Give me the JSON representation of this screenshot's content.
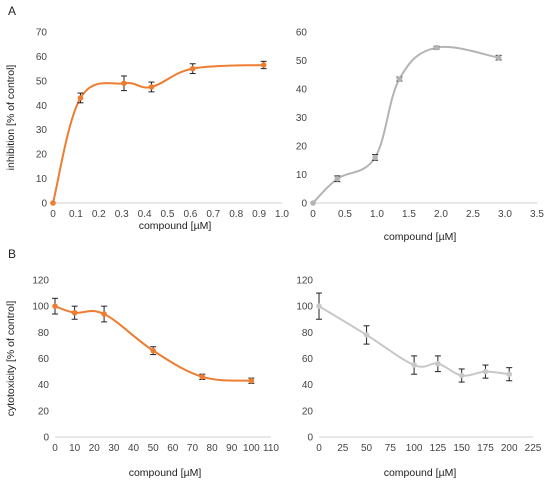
{
  "panel_labels": {
    "a": "A",
    "b": "B"
  },
  "chart_data": [
    {
      "id": "A-left",
      "type": "line",
      "xlabel": "compound [µM]",
      "ylabel": "inhibition [% of control]",
      "xlim": [
        0,
        1.0
      ],
      "xticks": [
        0,
        0.1,
        0.2,
        0.3,
        0.4,
        0.5,
        0.6,
        0.7,
        0.8,
        0.9,
        1.0
      ],
      "xtick_labels": [
        "0",
        "0.1",
        "0.2",
        "0.3",
        "0.4",
        "0.5",
        "0.6",
        "0.7",
        "0.8",
        "0.9",
        "1.0"
      ],
      "ylim": [
        0,
        70
      ],
      "yticks": [
        0,
        10,
        20,
        30,
        40,
        50,
        60,
        70
      ],
      "grid": false,
      "series": [
        {
          "color": "#ED7D31",
          "x": [
            0,
            0.12,
            0.31,
            0.43,
            0.61,
            0.92
          ],
          "y": [
            0,
            43,
            49,
            47.5,
            55,
            56.5
          ],
          "err": [
            0,
            2,
            3,
            2,
            2,
            1.5
          ]
        }
      ]
    },
    {
      "id": "A-right",
      "type": "line",
      "xlabel": "compound [µM]",
      "ylabel": "",
      "xlim": [
        0,
        3.5
      ],
      "xticks": [
        0,
        0.5,
        1.0,
        1.5,
        2.0,
        2.5,
        3.0,
        3.5
      ],
      "xtick_labels": [
        "0",
        "0.5",
        "1.0",
        "1.5",
        "2.0",
        "2.5",
        "3.0",
        "3.5"
      ],
      "ylim": [
        0,
        60
      ],
      "yticks": [
        0,
        10,
        20,
        30,
        40,
        50,
        60
      ],
      "grid": false,
      "series": [
        {
          "color": "#B4B4B4",
          "x": [
            0,
            0.38,
            0.97,
            1.35,
            1.93,
            2.9
          ],
          "y": [
            0,
            8.5,
            16,
            43.5,
            54.5,
            51
          ],
          "err": [
            0,
            1,
            1,
            0.7,
            0.5,
            0.8
          ]
        }
      ]
    },
    {
      "id": "B-left",
      "type": "line",
      "xlabel": "compound [µM]",
      "ylabel": "cytotoxicity [% of control]",
      "xlim": [
        0,
        110
      ],
      "xticks": [
        0,
        10,
        20,
        30,
        40,
        50,
        60,
        70,
        80,
        90,
        100,
        110
      ],
      "xtick_labels": [
        "0",
        "10",
        "20",
        "30",
        "40",
        "50",
        "60",
        "70",
        "80",
        "90",
        "100",
        "110"
      ],
      "ylim": [
        0,
        120
      ],
      "yticks": [
        0,
        20,
        40,
        60,
        80,
        100,
        120
      ],
      "grid": false,
      "series": [
        {
          "color": "#ED7D31",
          "x": [
            0,
            10,
            25,
            50,
            75,
            100
          ],
          "y": [
            100,
            95,
            94,
            66,
            46,
            43
          ],
          "err": [
            6,
            5,
            6,
            3,
            2,
            2
          ]
        }
      ]
    },
    {
      "id": "B-right",
      "type": "line",
      "xlabel": "compound [µM]",
      "ylabel": "",
      "xlim": [
        0,
        225
      ],
      "xticks": [
        0,
        25,
        50,
        75,
        100,
        125,
        150,
        175,
        200,
        225
      ],
      "xtick_labels": [
        "0",
        "25",
        "50",
        "75",
        "100",
        "125",
        "150",
        "175",
        "200",
        "225"
      ],
      "ylim": [
        0,
        120
      ],
      "yticks": [
        0,
        20,
        40,
        60,
        80,
        100,
        120
      ],
      "grid": false,
      "series": [
        {
          "color": "#C8C8C8",
          "x": [
            0,
            50,
            100,
            125,
            150,
            175,
            200
          ],
          "y": [
            100,
            78,
            55,
            56,
            47,
            50,
            48
          ],
          "err": [
            10,
            7,
            7,
            6,
            5,
            5,
            5
          ]
        }
      ]
    }
  ]
}
